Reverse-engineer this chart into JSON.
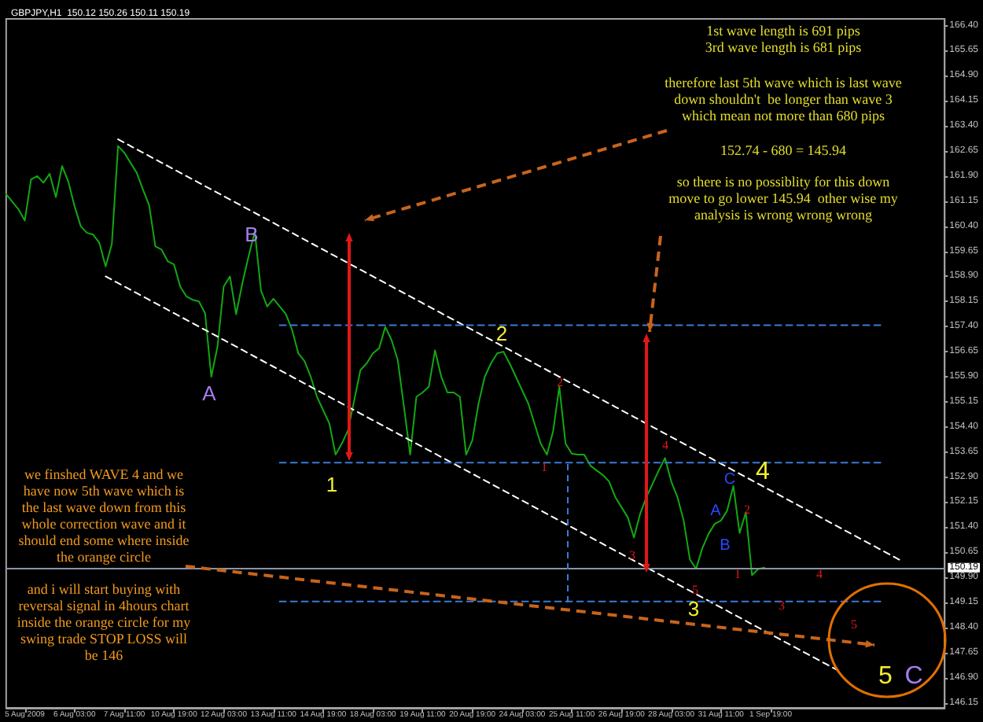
{
  "chart_data": {
    "type": "line",
    "title": "GBPJPY,H1  150.12 150.26 150.11 150.19",
    "marker": "none",
    "categories": [
      null,
      null,
      null,
      "5 Aug 2009",
      null,
      null,
      null,
      null,
      null,
      null,
      null,
      "6 Aug 03:00",
      null,
      null,
      null,
      null,
      null,
      null,
      null,
      "7 Aug 11:00",
      null,
      null,
      null,
      null,
      null,
      null,
      null,
      "10 Aug 19:00",
      null,
      null,
      null,
      null,
      null,
      null,
      null,
      "12 Aug 03:00",
      null,
      null,
      null,
      null,
      null,
      null,
      null,
      "13 Aug 11:00",
      null,
      null,
      null,
      null,
      null,
      null,
      null,
      "14 Aug 19:00",
      null,
      null,
      null,
      null,
      null,
      null,
      null,
      "18 Aug 03:00",
      null,
      null,
      null,
      null,
      null,
      null,
      null,
      "19 Aug 11:00",
      null,
      null,
      null,
      null,
      null,
      null,
      null,
      "20 Aug 19:00",
      null,
      null,
      null,
      null,
      null,
      null,
      null,
      "24 Aug 03:00",
      null,
      null,
      null,
      null,
      null,
      null,
      null,
      "25 Aug 11:00",
      null,
      null,
      null,
      null,
      null,
      null,
      null,
      "26 Aug 19:00",
      null,
      null,
      null,
      null,
      null,
      null,
      null,
      "28 Aug 03:00",
      null,
      null,
      null,
      null,
      null,
      null,
      null,
      "31 Aug 11:00",
      null,
      null,
      null,
      null,
      null,
      null,
      null,
      "1 Sep 19:00",
      null,
      null,
      null,
      null,
      null,
      null,
      null,
      null,
      null,
      null,
      null,
      null,
      null,
      null,
      null,
      null,
      null,
      null,
      null,
      null,
      null,
      null,
      null,
      null,
      null,
      null,
      null,
      null
    ],
    "ylim": [
      146.0,
      166.6
    ],
    "yticks": [
      146.15,
      {
        "value": 146.9,
        "label": "146.90"
      },
      147.65,
      {
        "value": 148.4,
        "label": "148.40"
      },
      149.15,
      {
        "value": 149.9,
        "label": "149.90"
      },
      150.65,
      {
        "value": 151.4,
        "label": "151.40"
      },
      152.15,
      {
        "value": 152.9,
        "label": "152.90"
      },
      153.65,
      {
        "value": 154.4,
        "label": "154.40"
      },
      155.15,
      {
        "value": 155.9,
        "label": "155.90"
      },
      156.65,
      {
        "value": 157.4,
        "label": "157.40"
      },
      158.15,
      {
        "value": 158.9,
        "label": "158.90"
      },
      159.65,
      {
        "value": 160.4,
        "label": "160.40"
      },
      161.15,
      {
        "value": 161.9,
        "label": "161.90"
      },
      162.65,
      {
        "value": 163.4,
        "label": "163.40"
      },
      164.15,
      {
        "value": 164.9,
        "label": "164.90"
      },
      165.65,
      {
        "value": 166.4,
        "label": "166.40"
      }
    ],
    "ref_lines": [
      {
        "axis": "y",
        "value": 150.19,
        "label": "150.19",
        "color": "#8a94a6"
      }
    ],
    "series": [
      {
        "color": "#12a812",
        "line_style": "solid",
        "values": [
          161.36,
          161.13,
          160.9,
          160.57,
          161.8,
          161.9,
          161.7,
          161.97,
          161.27,
          162.2,
          161.73,
          161.0,
          160.4,
          160.2,
          160.15,
          159.9,
          159.2,
          159.87,
          162.8,
          162.6,
          162.3,
          162.0,
          161.5,
          161.03,
          159.8,
          159.7,
          159.35,
          159.26,
          158.6,
          158.3,
          158.2,
          158.15,
          157.8,
          155.9,
          156.8,
          158.6,
          158.9,
          157.77,
          158.7,
          159.5,
          160.24,
          158.47,
          158.0,
          158.23,
          158.0,
          157.77,
          157.3,
          156.6,
          156.37,
          155.9,
          155.3,
          154.9,
          154.5,
          153.57,
          153.9,
          154.3,
          155.2,
          156.1,
          156.3,
          156.6,
          156.75,
          157.39,
          157.0,
          156.4,
          155.0,
          153.57,
          155.3,
          155.43,
          155.6,
          156.69,
          155.9,
          155.43,
          155.43,
          155.3,
          153.57,
          154.0,
          155.1,
          155.9,
          156.3,
          156.6,
          156.65,
          156.3,
          155.9,
          155.5,
          155.1,
          154.5,
          153.9,
          153.57,
          154.27,
          155.6,
          153.9,
          153.6,
          153.57,
          153.57,
          153.24,
          153.1,
          152.96,
          152.77,
          152.3,
          152.0,
          151.7,
          151.09,
          151.8,
          152.3,
          152.7,
          153.1,
          153.47,
          152.77,
          152.3,
          151.6,
          150.44,
          150.16,
          150.77,
          151.2,
          151.5,
          151.6,
          151.9,
          152.63,
          151.23,
          151.84,
          149.97,
          150.15,
          150.19,
          null,
          null,
          null,
          null,
          null,
          null,
          null,
          null,
          null,
          null,
          null,
          null,
          null,
          null,
          null,
          null,
          null,
          null,
          null,
          null,
          null,
          null,
          null,
          null,
          null,
          null,
          null,
          null,
          null
        ]
      },
      {
        "type": "line",
        "color": "#ffffff",
        "line_style": "dashed",
        "values": [
          null,
          null,
          null,
          null,
          null,
          null,
          null,
          null,
          null,
          null,
          null,
          null,
          null,
          null,
          null,
          null,
          null,
          null,
          163,
          162.9,
          162.8,
          162.7,
          162.6,
          162.5,
          162.4,
          162.3,
          162.2,
          162.1,
          162,
          161.9,
          161.8,
          161.7,
          161.6,
          161.5,
          161.4,
          161.3,
          161.2,
          161.1,
          161,
          160.9,
          160.8,
          160.7,
          160.6,
          160.5,
          160.4,
          160.3,
          160.2,
          160.1,
          160,
          159.9,
          159.8,
          159.7,
          159.6,
          159.5,
          159.4,
          159.3,
          159.2,
          159.1,
          159,
          158.9,
          158.8,
          158.7,
          158.6,
          158.5,
          158.4,
          158.3,
          158.2,
          158.1,
          158,
          157.9,
          157.8,
          157.7,
          157.6,
          157.5,
          157.4,
          157.3,
          157.2,
          157.1,
          157,
          156.9,
          156.8,
          156.7,
          156.6,
          156.5,
          156.4,
          156.3,
          156.2,
          156.1,
          156,
          155.9,
          155.8,
          155.7,
          155.6,
          155.5,
          155.4,
          155.3,
          155.2,
          155.1,
          155,
          154.9,
          154.8,
          154.7,
          154.6,
          154.5,
          154.4,
          154.3,
          154.2,
          154.1,
          154,
          153.9,
          153.8,
          153.7,
          153.6,
          153.5,
          153.4,
          153.3,
          153.2,
          153.1,
          153,
          152.9,
          152.8,
          152.7,
          152.6,
          152.5,
          152.4,
          152.3,
          152.2,
          152.1,
          152,
          151.9,
          151.8,
          151.7,
          151.6,
          151.5,
          151.4,
          151.3,
          151.2,
          151.1,
          151,
          150.9,
          150.8,
          150.7,
          150.6,
          150.5,
          150.4,
          null,
          null,
          null,
          null,
          null,
          null,
          null
        ]
      },
      {
        "type": "line",
        "color": "#ffffff",
        "line_style": "dashed",
        "values": [
          null,
          null,
          null,
          null,
          null,
          null,
          null,
          null,
          null,
          null,
          null,
          null,
          null,
          null,
          null,
          null,
          158.9,
          158.8,
          158.7,
          158.6,
          158.5,
          158.4,
          158.3,
          158.2,
          158.1,
          158,
          157.9,
          157.8,
          157.7,
          157.6,
          157.5,
          157.4,
          157.3,
          157.2,
          157.1,
          157,
          156.9,
          156.8,
          156.7,
          156.6,
          156.5,
          156.4,
          156.3,
          156.2,
          156.1,
          156,
          155.9,
          155.8,
          155.7,
          155.6,
          155.5,
          155.4,
          155.3,
          155.2,
          155.1,
          155,
          154.9,
          154.8,
          154.7,
          154.6,
          154.5,
          154.4,
          154.3,
          154.2,
          154.1,
          154,
          153.9,
          153.8,
          153.7,
          153.6,
          153.5,
          153.4,
          153.3,
          153.2,
          153.1,
          153,
          152.9,
          152.8,
          152.7,
          152.6,
          152.5,
          152.4,
          152.3,
          152.2,
          152.1,
          152,
          151.9,
          151.8,
          151.7,
          151.6,
          151.5,
          151.4,
          151.3,
          151.2,
          151.1,
          151,
          150.9,
          150.8,
          150.7,
          150.6,
          150.5,
          150.4,
          150.3,
          150.2,
          150.1,
          150,
          149.9,
          149.8,
          149.7,
          149.6,
          149.5,
          149.4,
          149.3,
          149.2,
          149.1,
          149,
          148.9,
          148.8,
          148.7,
          148.6,
          148.5,
          148.4,
          148.3,
          148.2,
          148.1,
          148,
          147.9,
          147.8,
          147.7,
          147.6,
          147.5,
          147.4,
          147.3,
          147.2,
          147.1,
          null,
          null,
          null,
          null,
          null,
          null,
          null,
          null,
          null,
          null,
          null,
          null,
          null,
          null,
          null,
          null,
          null
        ]
      },
      {
        "type": "line",
        "color": "#3a7ad8",
        "line_style": "dashed",
        "values": [
          null,
          null,
          null,
          null,
          null,
          null,
          null,
          null,
          null,
          null,
          null,
          null,
          null,
          null,
          null,
          null,
          null,
          null,
          null,
          null,
          null,
          null,
          null,
          null,
          null,
          null,
          null,
          null,
          null,
          null,
          null,
          null,
          null,
          null,
          null,
          null,
          null,
          null,
          null,
          null,
          null,
          null,
          null,
          null,
          157.44,
          157.44,
          157.44,
          157.44,
          157.44,
          157.44,
          157.44,
          157.44,
          157.44,
          157.44,
          157.44,
          157.44,
          157.44,
          157.44,
          157.44,
          157.44,
          157.44,
          157.44,
          157.44,
          157.44,
          157.44,
          157.44,
          157.44,
          157.44,
          157.44,
          157.44,
          157.44,
          157.44,
          157.44,
          157.44,
          157.44,
          157.44,
          157.44,
          157.44,
          157.44,
          157.44,
          157.44,
          157.44,
          157.44,
          157.44,
          157.44,
          157.44,
          157.44,
          157.44,
          157.44,
          157.44,
          157.44,
          157.44,
          157.44,
          157.44,
          157.44,
          157.44,
          157.44,
          157.44,
          157.44,
          157.44,
          157.44,
          157.44,
          157.44,
          157.44,
          157.44,
          157.44,
          157.44,
          157.44,
          157.44,
          157.44,
          157.44,
          157.44,
          157.44,
          157.44,
          157.44,
          157.44,
          157.44,
          157.44,
          157.44,
          157.44,
          157.44,
          157.44,
          157.44,
          157.44,
          157.44,
          157.44,
          157.44,
          157.44,
          157.44,
          157.44,
          157.44,
          157.44,
          157.44,
          157.44,
          157.44,
          157.44,
          157.44,
          157.44,
          157.44,
          157.44,
          157.44,
          157.44,
          null,
          null,
          null,
          null,
          null,
          null,
          null,
          null,
          null,
          null
        ]
      },
      {
        "type": "line",
        "color": "#3a7ad8",
        "line_style": "dashed",
        "values": [
          null,
          null,
          null,
          null,
          null,
          null,
          null,
          null,
          null,
          null,
          null,
          null,
          null,
          null,
          null,
          null,
          null,
          null,
          null,
          null,
          null,
          null,
          null,
          null,
          null,
          null,
          null,
          null,
          null,
          null,
          null,
          null,
          null,
          null,
          null,
          null,
          null,
          null,
          null,
          null,
          null,
          null,
          null,
          null,
          153.33,
          153.33,
          153.33,
          153.33,
          153.33,
          153.33,
          153.33,
          153.33,
          153.33,
          153.33,
          153.33,
          153.33,
          153.33,
          153.33,
          153.33,
          153.33,
          153.33,
          153.33,
          153.33,
          153.33,
          153.33,
          153.33,
          153.33,
          153.33,
          153.33,
          153.33,
          153.33,
          153.33,
          153.33,
          153.33,
          153.33,
          153.33,
          153.33,
          153.33,
          153.33,
          153.33,
          153.33,
          153.33,
          153.33,
          153.33,
          153.33,
          153.33,
          153.33,
          153.33,
          153.33,
          153.33,
          153.33,
          153.33,
          153.33,
          153.33,
          153.33,
          153.33,
          153.33,
          153.33,
          153.33,
          153.33,
          153.33,
          153.33,
          153.33,
          153.33,
          153.33,
          153.33,
          153.33,
          153.33,
          153.33,
          153.33,
          153.33,
          153.33,
          153.33,
          153.33,
          153.33,
          153.33,
          153.33,
          153.33,
          153.33,
          153.33,
          153.33,
          153.33,
          153.33,
          153.33,
          153.33,
          153.33,
          153.33,
          153.33,
          153.33,
          153.33,
          153.33,
          153.33,
          153.33,
          153.33,
          153.33,
          153.33,
          153.33,
          153.33,
          153.33,
          153.33,
          153.33,
          153.33,
          null,
          null,
          null,
          null,
          null,
          null,
          null,
          null,
          null,
          null
        ]
      },
      {
        "type": "line",
        "color": "#3a7ad8",
        "line_style": "dashed",
        "values": [
          null,
          null,
          null,
          null,
          null,
          null,
          null,
          null,
          null,
          null,
          null,
          null,
          null,
          null,
          null,
          null,
          null,
          null,
          null,
          null,
          null,
          null,
          null,
          null,
          null,
          null,
          null,
          null,
          null,
          null,
          null,
          null,
          null,
          null,
          null,
          null,
          null,
          null,
          null,
          null,
          null,
          null,
          null,
          null,
          149.18,
          149.18,
          149.18,
          149.18,
          149.18,
          149.18,
          149.18,
          149.18,
          149.18,
          149.18,
          149.18,
          149.18,
          149.18,
          149.18,
          149.18,
          149.18,
          149.18,
          149.18,
          149.18,
          149.18,
          149.18,
          149.18,
          149.18,
          149.18,
          149.18,
          149.18,
          149.18,
          149.18,
          149.18,
          149.18,
          149.18,
          149.18,
          149.18,
          149.18,
          149.18,
          149.18,
          149.18,
          149.18,
          149.18,
          149.18,
          149.18,
          149.18,
          149.18,
          149.18,
          149.18,
          149.18,
          149.18,
          149.18,
          149.18,
          149.18,
          149.18,
          149.18,
          149.18,
          149.18,
          149.18,
          149.18,
          149.18,
          149.18,
          149.18,
          149.18,
          149.18,
          149.18,
          149.18,
          149.18,
          149.18,
          149.18,
          149.18,
          149.18,
          149.18,
          149.18,
          149.18,
          149.18,
          149.18,
          149.18,
          149.18,
          149.18,
          149.18,
          149.18,
          149.18,
          149.18,
          149.18,
          149.18,
          149.18,
          149.18,
          149.18,
          149.18,
          149.18,
          149.18,
          149.18,
          149.18,
          149.18,
          149.18,
          149.18,
          149.18,
          149.18,
          149.18,
          149.18,
          149.18,
          null,
          null,
          null,
          null,
          null,
          null,
          null,
          null,
          null,
          null
        ]
      }
    ],
    "annotations": [
      "1st wave length is 691 pips\n3rd wave length is 681 pips",
      "therefore last 5th wave which is last wave\ndown shouldn't  be longer than wave 3\nwhich mean not more than 680 pips",
      "152.74 - 680 = 145.94",
      "so there is no possiblity for this down\nmove to go lower 145.94  other wise my\nanalysis is wrong wrong wrong",
      "we finshed WAVE 4 and we\nhave now 5th wave which is\nthe last wave down from this\nwhole correction wave and it\nshould end some where inside\nthe orange circle",
      "and i will start buying with\nreversal signal in 4hours chart\ninside the orange circle for my\nswing trade STOP LOSS will\nbe 146",
      "A",
      "B",
      "1",
      "2",
      "3",
      "4",
      "5",
      "C",
      "1",
      "2",
      "3",
      "4",
      "5",
      "1",
      "2",
      "3",
      "4",
      "5",
      "A",
      "B",
      "C"
    ]
  }
}
